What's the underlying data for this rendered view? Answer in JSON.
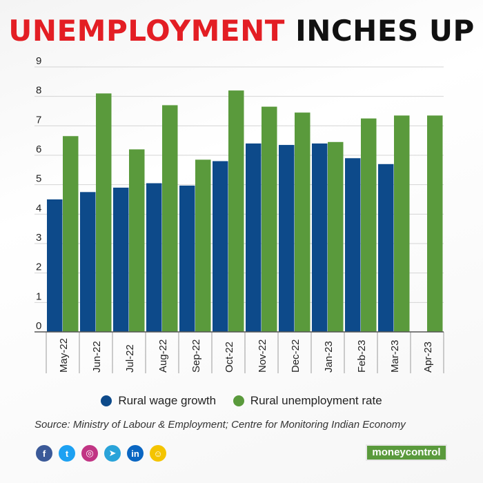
{
  "title": {
    "part1": "UNEMPLOYMENT",
    "part2": "INCHES UP"
  },
  "colors": {
    "wage": "#0d4a8a",
    "unemployment": "#5a9a3c",
    "title_accent": "#e31e24"
  },
  "chart_data": {
    "type": "bar",
    "categories": [
      "May-22",
      "Jun-22",
      "Jul-22",
      "Aug-22",
      "Sep-22",
      "Oct-22",
      "Nov-22",
      "Dec-22",
      "Jan-23",
      "Feb-23",
      "Mar-23",
      "Apr-23"
    ],
    "series": [
      {
        "name": "Rural wage growth",
        "values": [
          4.5,
          4.75,
          4.9,
          5.05,
          4.97,
          5.8,
          6.4,
          6.35,
          6.4,
          5.9,
          5.7,
          null
        ]
      },
      {
        "name": "Rural unemployment rate",
        "values": [
          6.65,
          8.1,
          6.2,
          7.7,
          5.85,
          8.2,
          7.65,
          7.45,
          6.45,
          7.25,
          7.35,
          7.35
        ]
      }
    ],
    "yticks": [
      0,
      1,
      2,
      3,
      4,
      5,
      6,
      7,
      8,
      9
    ],
    "ylim": [
      0,
      9
    ],
    "grid": true,
    "legend": "bottom"
  },
  "source": "Source: Ministry of Labour & Employment; Centre for Monitoring Indian Economy",
  "social_icons": [
    {
      "name": "facebook-icon",
      "glyph": "f",
      "color": "#3b5998"
    },
    {
      "name": "twitter-icon",
      "glyph": "t",
      "color": "#1da1f2"
    },
    {
      "name": "instagram-icon",
      "glyph": "◎",
      "color": "#c13584"
    },
    {
      "name": "telegram-icon",
      "glyph": "➤",
      "color": "#2aa3d9"
    },
    {
      "name": "linkedin-icon",
      "glyph": "in",
      "color": "#0a66c2"
    },
    {
      "name": "snapchat-icon",
      "glyph": "☺",
      "color": "#f4c400"
    }
  ],
  "brand": "moneycontrol"
}
